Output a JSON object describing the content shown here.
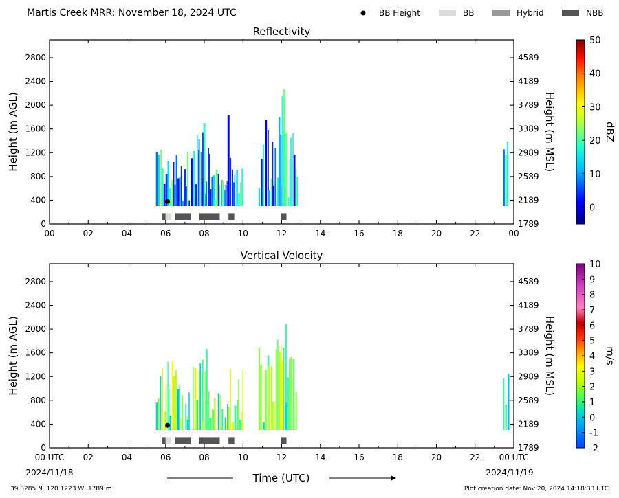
{
  "title": "Martis Creek MRR:  November 18, 2024 UTC",
  "legend": [
    {
      "label": "BB Height",
      "kind": "dot",
      "color": "#000000"
    },
    {
      "label": "BB",
      "kind": "box",
      "color": "#dcdcdc"
    },
    {
      "label": "Hybrid",
      "kind": "box",
      "color": "#999999"
    },
    {
      "label": "NBB",
      "kind": "box",
      "color": "#555555"
    }
  ],
  "footer": {
    "location": "39.3285 N, 120.1223 W, 1789 m",
    "creation": "Plot creation date: Nov 20, 2024 14:18:33 UTC",
    "xlabel": "Time (UTC)",
    "start_date": "2024/11/18",
    "end_date": "2024/11/19"
  },
  "chart_data": [
    {
      "type": "heatmap",
      "title": "Reflectivity",
      "ylabel": "Height (m AGL)",
      "y2label": "Height (m MSL)",
      "x_ticks": [
        "00",
        "02",
        "04",
        "06",
        "08",
        "10",
        "12",
        "14",
        "16",
        "18",
        "20",
        "22",
        "00"
      ],
      "xlim": [
        0,
        24
      ],
      "ylim": [
        0,
        3100
      ],
      "y_ticks": [
        0,
        400,
        800,
        1200,
        1600,
        2000,
        2400,
        2800
      ],
      "y2_ticks": [
        "1789",
        "2189",
        "2589",
        "2989",
        "3389",
        "3789",
        "4189",
        "4589"
      ],
      "colorbar": {
        "label": "dBZ",
        "min": -5,
        "max": 50,
        "ticks": [
          0,
          10,
          20,
          30,
          40,
          50
        ]
      },
      "bb_points": [
        {
          "time": 6.1,
          "height": 380
        }
      ],
      "bb_segments": [
        {
          "start": 5.8,
          "end": 6.0,
          "type": "NBB"
        },
        {
          "start": 6.0,
          "end": 6.3,
          "type": "BB"
        },
        {
          "start": 6.5,
          "end": 7.3,
          "type": "NBB"
        },
        {
          "start": 7.75,
          "end": 8.8,
          "type": "NBB"
        },
        {
          "start": 9.25,
          "end": 9.55,
          "type": "NBB"
        },
        {
          "start": 11.95,
          "end": 12.25,
          "type": "NBB"
        }
      ],
      "echo_columns": [
        {
          "start": 5.5,
          "end": 6.0,
          "top": 1500
        },
        {
          "start": 6.0,
          "end": 6.4,
          "top": 1500
        },
        {
          "start": 6.4,
          "end": 6.7,
          "top": 1400
        },
        {
          "start": 6.7,
          "end": 7.1,
          "top": 1100
        },
        {
          "start": 7.1,
          "end": 7.4,
          "top": 1300
        },
        {
          "start": 7.4,
          "end": 7.7,
          "top": 1500
        },
        {
          "start": 7.7,
          "end": 7.9,
          "top": 1500
        },
        {
          "start": 7.9,
          "end": 8.2,
          "top": 2000
        },
        {
          "start": 8.2,
          "end": 8.5,
          "top": 1300
        },
        {
          "start": 8.5,
          "end": 8.9,
          "top": 1000
        },
        {
          "start": 8.9,
          "end": 9.2,
          "top": 800
        },
        {
          "start": 9.2,
          "end": 9.55,
          "top": 1900
        },
        {
          "start": 9.55,
          "end": 9.75,
          "top": 1100
        },
        {
          "start": 9.75,
          "end": 10.0,
          "top": 1400
        },
        {
          "start": 10.8,
          "end": 11.3,
          "top": 1800
        },
        {
          "start": 11.3,
          "end": 11.55,
          "top": 1600
        },
        {
          "start": 11.55,
          "end": 11.85,
          "top": 1900
        },
        {
          "start": 11.85,
          "end": 12.0,
          "top": 2000
        },
        {
          "start": 12.0,
          "end": 12.2,
          "top": 2300
        },
        {
          "start": 12.2,
          "end": 12.45,
          "top": 1800
        },
        {
          "start": 12.45,
          "end": 12.8,
          "top": 1650
        },
        {
          "start": 23.45,
          "end": 23.7,
          "top": 1400
        }
      ]
    },
    {
      "type": "heatmap",
      "title": "Vertical Velocity",
      "ylabel": "Height (m AGL)",
      "y2label": "Height (m MSL)",
      "x_ticks": [
        "00 UTC",
        "02",
        "04",
        "06",
        "08",
        "10",
        "12",
        "14",
        "16",
        "18",
        "20",
        "22",
        "00 UTC"
      ],
      "xlim": [
        0,
        24
      ],
      "ylim": [
        0,
        3100
      ],
      "y_ticks": [
        0,
        400,
        800,
        1200,
        1600,
        2000,
        2400,
        2800
      ],
      "y2_ticks": [
        "1789",
        "2189",
        "2589",
        "2989",
        "3389",
        "3789",
        "4189",
        "4589"
      ],
      "colorbar": {
        "label": "m/s",
        "min": -2,
        "max": 10,
        "ticks": [
          -2,
          -1,
          0,
          1,
          2,
          3,
          4,
          5,
          6,
          7,
          8,
          9,
          10
        ]
      },
      "bb_points": [
        {
          "time": 6.1,
          "height": 380
        }
      ],
      "bb_segments": [
        {
          "start": 5.8,
          "end": 6.0,
          "type": "NBB"
        },
        {
          "start": 6.0,
          "end": 6.3,
          "type": "BB"
        },
        {
          "start": 6.5,
          "end": 7.3,
          "type": "NBB"
        },
        {
          "start": 7.75,
          "end": 8.8,
          "type": "NBB"
        },
        {
          "start": 9.25,
          "end": 9.55,
          "type": "NBB"
        },
        {
          "start": 11.95,
          "end": 12.25,
          "type": "NBB"
        }
      ],
      "echo_columns": [
        {
          "start": 5.5,
          "end": 6.0,
          "top": 1500
        },
        {
          "start": 6.0,
          "end": 6.4,
          "top": 1500
        },
        {
          "start": 6.4,
          "end": 6.7,
          "top": 1400
        },
        {
          "start": 6.7,
          "end": 7.1,
          "top": 1100
        },
        {
          "start": 7.1,
          "end": 7.4,
          "top": 1300
        },
        {
          "start": 7.4,
          "end": 7.7,
          "top": 1500
        },
        {
          "start": 7.7,
          "end": 7.9,
          "top": 1500
        },
        {
          "start": 7.9,
          "end": 8.2,
          "top": 2000
        },
        {
          "start": 8.2,
          "end": 8.5,
          "top": 1300
        },
        {
          "start": 8.5,
          "end": 8.9,
          "top": 1000
        },
        {
          "start": 8.9,
          "end": 9.2,
          "top": 800
        },
        {
          "start": 9.2,
          "end": 9.55,
          "top": 1900
        },
        {
          "start": 9.55,
          "end": 9.75,
          "top": 1100
        },
        {
          "start": 9.75,
          "end": 10.0,
          "top": 1400
        },
        {
          "start": 10.8,
          "end": 11.3,
          "top": 1800
        },
        {
          "start": 11.3,
          "end": 11.55,
          "top": 1600
        },
        {
          "start": 11.55,
          "end": 11.85,
          "top": 1900
        },
        {
          "start": 11.85,
          "end": 12.0,
          "top": 2000
        },
        {
          "start": 12.0,
          "end": 12.2,
          "top": 2300
        },
        {
          "start": 12.2,
          "end": 12.45,
          "top": 1800
        },
        {
          "start": 12.45,
          "end": 12.8,
          "top": 1650
        },
        {
          "start": 23.45,
          "end": 23.7,
          "top": 1400
        }
      ]
    }
  ]
}
